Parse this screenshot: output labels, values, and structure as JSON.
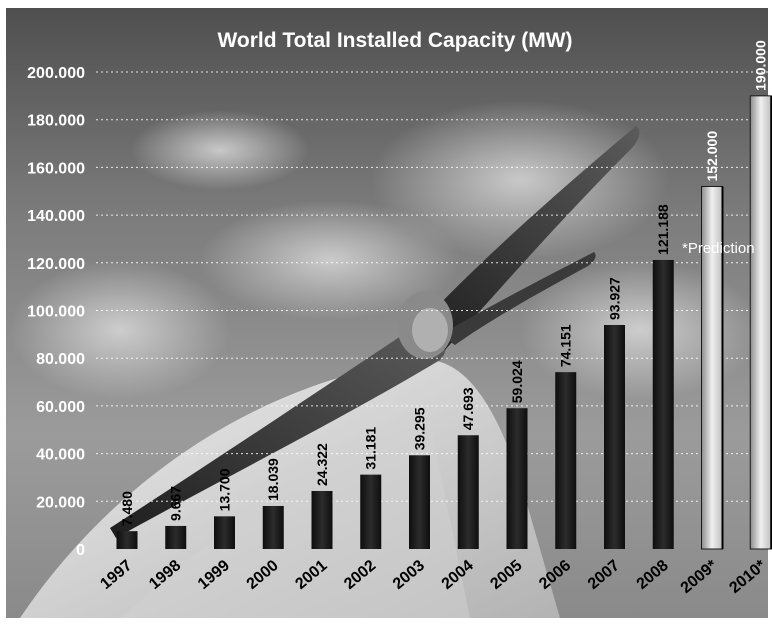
{
  "chart_data": {
    "type": "bar",
    "title": "World Total Installed Capacity (MW)",
    "xlabel": "",
    "ylabel": "",
    "ylim": [
      0,
      200000
    ],
    "yticks": [
      0,
      20000,
      40000,
      60000,
      80000,
      100000,
      120000,
      140000,
      160000,
      180000,
      200000
    ],
    "ytick_labels": [
      "0",
      "20.000",
      "40.000",
      "60.000",
      "80.000",
      "100.000",
      "120.000",
      "140.000",
      "160.000",
      "180.000",
      "200.000"
    ],
    "categories": [
      "1997",
      "1998",
      "1999",
      "2000",
      "2001",
      "2002",
      "2003",
      "2004",
      "2005",
      "2006",
      "2007",
      "2008",
      "2009*",
      "2010*"
    ],
    "values": [
      7480,
      9667,
      13700,
      18039,
      24322,
      31181,
      39295,
      47693,
      59024,
      74151,
      93927,
      121188,
      152000,
      190000
    ],
    "value_labels": [
      "7.480",
      "9.667",
      "13.700",
      "18.039",
      "24.322",
      "31.181",
      "39.295",
      "47.693",
      "59.024",
      "74.151",
      "93.927",
      "121.188",
      "152.000",
      "190.000"
    ],
    "annotation": "*Prediction",
    "grid": true,
    "legend": "none"
  },
  "colors": {
    "bar_actual": "#1a1a1a",
    "bar_prediction": "#e6e6e6",
    "grid": "#ffffff",
    "title": "#ffffff"
  }
}
